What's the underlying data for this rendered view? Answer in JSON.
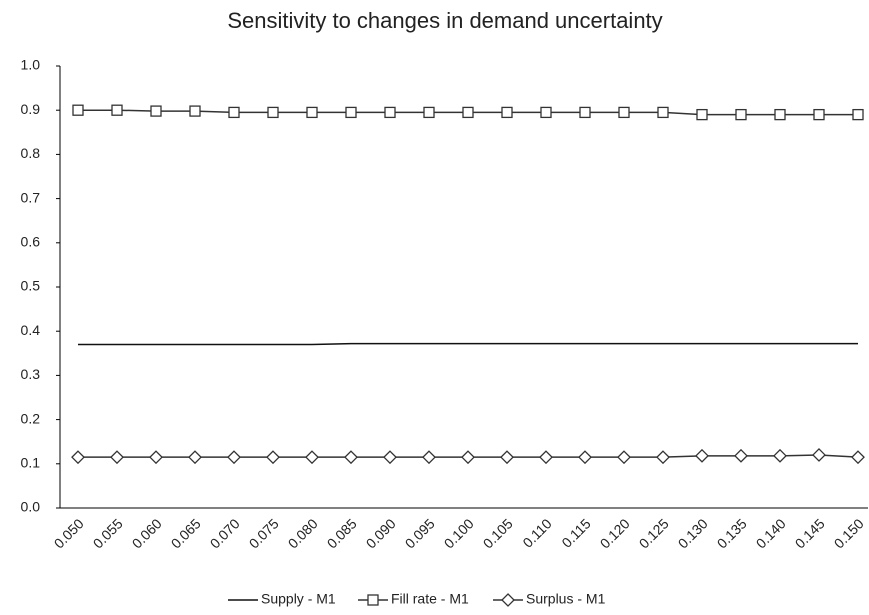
{
  "chart_data": {
    "type": "line",
    "title": "Sensitivity to changes in demand uncertainty",
    "categories": [
      "0.050",
      "0.055",
      "0.060",
      "0.065",
      "0.070",
      "0.075",
      "0.080",
      "0.085",
      "0.090",
      "0.095",
      "0.100",
      "0.105",
      "0.110",
      "0.115",
      "0.120",
      "0.125",
      "0.130",
      "0.135",
      "0.140",
      "0.145",
      "0.150"
    ],
    "series": [
      {
        "name": "Supply - M1",
        "color": "#111111",
        "marker": "none",
        "values": [
          0.37,
          0.37,
          0.37,
          0.37,
          0.37,
          0.37,
          0.37,
          0.372,
          0.372,
          0.372,
          0.372,
          0.372,
          0.372,
          0.372,
          0.372,
          0.372,
          0.372,
          0.372,
          0.372,
          0.372,
          0.372
        ]
      },
      {
        "name": "Fill rate - M1",
        "color": "#333333",
        "marker": "square",
        "values": [
          0.9,
          0.9,
          0.898,
          0.898,
          0.895,
          0.895,
          0.895,
          0.895,
          0.895,
          0.895,
          0.895,
          0.895,
          0.895,
          0.895,
          0.895,
          0.895,
          0.89,
          0.89,
          0.89,
          0.89,
          0.89
        ]
      },
      {
        "name": "Surplus - M1",
        "color": "#333333",
        "marker": "diamond",
        "values": [
          0.115,
          0.115,
          0.115,
          0.115,
          0.115,
          0.115,
          0.115,
          0.115,
          0.115,
          0.115,
          0.115,
          0.115,
          0.115,
          0.115,
          0.115,
          0.115,
          0.118,
          0.118,
          0.118,
          0.12,
          0.115
        ]
      }
    ],
    "ylim": [
      0,
      1
    ],
    "yticks": [
      {
        "value": 0,
        "label": "0.0"
      },
      0.1,
      0.2,
      0.3,
      0.4,
      0.5,
      0.6,
      0.7,
      0.8,
      0.9,
      {
        "value": 1,
        "label": "1.0"
      }
    ],
    "grid": false,
    "legend": "bottom"
  }
}
